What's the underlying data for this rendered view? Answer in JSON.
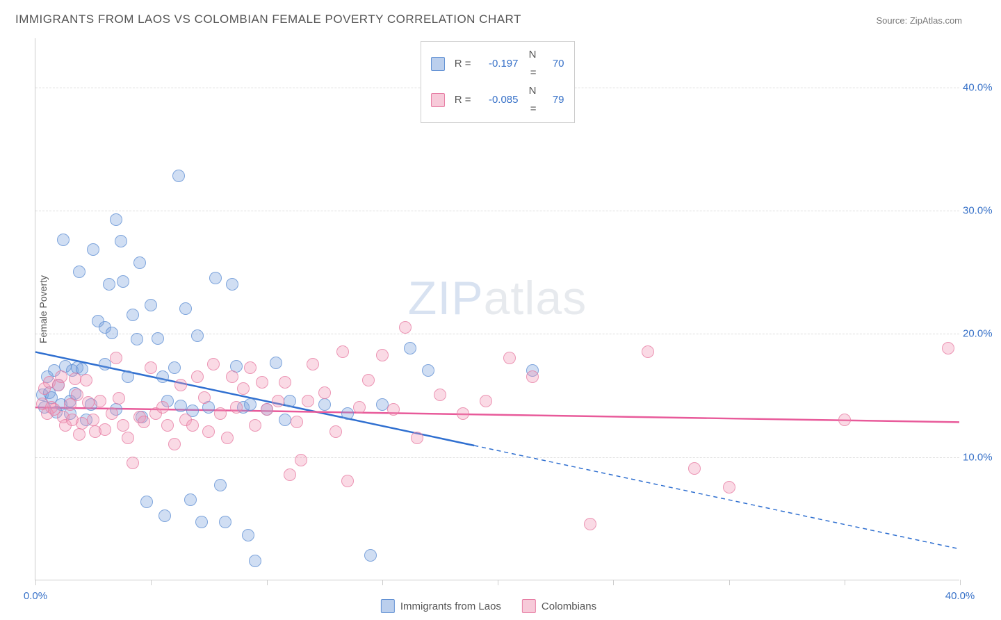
{
  "title": "IMMIGRANTS FROM LAOS VS COLOMBIAN FEMALE POVERTY CORRELATION CHART",
  "source": "Source: ZipAtlas.com",
  "watermark": "ZIPatlas",
  "chart": {
    "type": "scatter",
    "x_axis": {
      "min": 0,
      "max": 40,
      "unit": "%",
      "tick_positions": [
        0,
        5,
        10,
        15,
        20,
        25,
        30,
        35,
        40
      ],
      "labeled_ticks": [
        {
          "pos": 0,
          "label": "0.0%"
        },
        {
          "pos": 40,
          "label": "40.0%"
        }
      ]
    },
    "y_axis": {
      "title": "Female Poverty",
      "min": 0,
      "max": 44,
      "unit": "%",
      "tick_positions": [
        10,
        20,
        30,
        40
      ],
      "labels": [
        "10.0%",
        "20.0%",
        "30.0%",
        "40.0%"
      ]
    },
    "grid_color": "#dddddd",
    "background_color": "#ffffff",
    "axis_color": "#cccccc",
    "tick_label_color": "#3771c8",
    "axis_title_color": "#555555",
    "series": [
      {
        "name": "Immigrants from Laos",
        "color_fill": "rgba(120,160,220,0.35)",
        "color_stroke": "rgba(90,140,210,0.7)",
        "line_color": "#2f6fd0",
        "R": -0.197,
        "N": 70,
        "regression": {
          "x1": 0,
          "y1": 18.5,
          "x2": 40,
          "y2": 2.5,
          "solid_until_x": 19
        },
        "points": [
          [
            0.3,
            15
          ],
          [
            0.4,
            14
          ],
          [
            0.5,
            16.5
          ],
          [
            0.6,
            15.2
          ],
          [
            0.7,
            14.8
          ],
          [
            0.8,
            17
          ],
          [
            0.9,
            13.6
          ],
          [
            1.0,
            15.8
          ],
          [
            1.1,
            14.2
          ],
          [
            1.2,
            27.6
          ],
          [
            1.3,
            17.3
          ],
          [
            1.5,
            13.5
          ],
          [
            1.5,
            14.5
          ],
          [
            1.6,
            17
          ],
          [
            1.7,
            15.1
          ],
          [
            1.8,
            17.2
          ],
          [
            1.9,
            25
          ],
          [
            2.0,
            17.1
          ],
          [
            2.2,
            13.0
          ],
          [
            2.4,
            14.2
          ],
          [
            2.5,
            26.8
          ],
          [
            2.7,
            21
          ],
          [
            3.0,
            20.5
          ],
          [
            3.0,
            17.5
          ],
          [
            3.2,
            24
          ],
          [
            3.3,
            20
          ],
          [
            3.5,
            29.2
          ],
          [
            3.5,
            13.8
          ],
          [
            3.7,
            27.5
          ],
          [
            3.8,
            24.2
          ],
          [
            4.0,
            16.5
          ],
          [
            4.2,
            21.5
          ],
          [
            4.4,
            19.5
          ],
          [
            4.5,
            25.7
          ],
          [
            4.6,
            13.2
          ],
          [
            4.8,
            6.3
          ],
          [
            5.0,
            22.3
          ],
          [
            5.3,
            19.6
          ],
          [
            5.5,
            16.5
          ],
          [
            5.6,
            5.2
          ],
          [
            5.7,
            14.5
          ],
          [
            6.0,
            17.2
          ],
          [
            6.2,
            32.8
          ],
          [
            6.3,
            14.1
          ],
          [
            6.5,
            22.0
          ],
          [
            6.7,
            6.5
          ],
          [
            6.8,
            13.7
          ],
          [
            7.0,
            19.8
          ],
          [
            7.2,
            4.7
          ],
          [
            7.5,
            14.0
          ],
          [
            7.8,
            24.5
          ],
          [
            8.0,
            7.7
          ],
          [
            8.2,
            4.7
          ],
          [
            8.5,
            24.0
          ],
          [
            8.7,
            17.3
          ],
          [
            9.0,
            14.0
          ],
          [
            9.2,
            3.6
          ],
          [
            9.3,
            14.2
          ],
          [
            9.5,
            1.5
          ],
          [
            10.0,
            13.8
          ],
          [
            10.4,
            17.6
          ],
          [
            10.8,
            13.0
          ],
          [
            11.0,
            14.5
          ],
          [
            12.5,
            14.2
          ],
          [
            13.5,
            13.5
          ],
          [
            14.5,
            2.0
          ],
          [
            15.0,
            14.2
          ],
          [
            16.2,
            18.8
          ],
          [
            17.0,
            17.0
          ],
          [
            21.5,
            17.0
          ]
        ]
      },
      {
        "name": "Colombians",
        "color_fill": "rgba(240,150,180,0.35)",
        "color_stroke": "rgba(230,120,160,0.7)",
        "line_color": "#e85a9a",
        "R": -0.085,
        "N": 79,
        "regression": {
          "x1": 0,
          "y1": 14.0,
          "x2": 40,
          "y2": 12.8,
          "solid_until_x": 40
        },
        "points": [
          [
            0.3,
            14.3
          ],
          [
            0.4,
            15.5
          ],
          [
            0.5,
            13.5
          ],
          [
            0.6,
            16.0
          ],
          [
            0.7,
            14.0
          ],
          [
            0.8,
            13.8
          ],
          [
            1.0,
            15.8
          ],
          [
            1.1,
            16.5
          ],
          [
            1.2,
            13.2
          ],
          [
            1.3,
            12.5
          ],
          [
            1.5,
            14.2
          ],
          [
            1.6,
            13.0
          ],
          [
            1.7,
            16.3
          ],
          [
            1.8,
            15.0
          ],
          [
            1.9,
            11.8
          ],
          [
            2.0,
            12.7
          ],
          [
            2.2,
            16.2
          ],
          [
            2.3,
            14.4
          ],
          [
            2.5,
            13.0
          ],
          [
            2.6,
            12.0
          ],
          [
            2.8,
            14.5
          ],
          [
            3.0,
            12.2
          ],
          [
            3.3,
            13.5
          ],
          [
            3.5,
            18.0
          ],
          [
            3.6,
            14.7
          ],
          [
            3.8,
            12.5
          ],
          [
            4.0,
            11.5
          ],
          [
            4.2,
            9.5
          ],
          [
            4.5,
            13.2
          ],
          [
            4.7,
            12.8
          ],
          [
            5.0,
            17.2
          ],
          [
            5.2,
            13.5
          ],
          [
            5.5,
            14.0
          ],
          [
            5.7,
            12.5
          ],
          [
            6.0,
            11.0
          ],
          [
            6.3,
            15.8
          ],
          [
            6.5,
            13.0
          ],
          [
            6.8,
            12.5
          ],
          [
            7.0,
            16.5
          ],
          [
            7.3,
            14.8
          ],
          [
            7.5,
            12.0
          ],
          [
            7.7,
            17.5
          ],
          [
            8.0,
            13.5
          ],
          [
            8.3,
            11.5
          ],
          [
            8.5,
            16.5
          ],
          [
            8.7,
            14.0
          ],
          [
            9.0,
            15.5
          ],
          [
            9.3,
            17.2
          ],
          [
            9.5,
            12.5
          ],
          [
            9.8,
            16.0
          ],
          [
            10.0,
            13.8
          ],
          [
            10.5,
            14.5
          ],
          [
            10.8,
            16.0
          ],
          [
            11.0,
            8.5
          ],
          [
            11.3,
            12.8
          ],
          [
            11.5,
            9.7
          ],
          [
            11.8,
            14.5
          ],
          [
            12.0,
            17.5
          ],
          [
            12.5,
            15.2
          ],
          [
            13.0,
            12.0
          ],
          [
            13.3,
            18.5
          ],
          [
            13.5,
            8.0
          ],
          [
            14.0,
            14.0
          ],
          [
            14.4,
            16.2
          ],
          [
            15.0,
            18.2
          ],
          [
            15.5,
            13.8
          ],
          [
            16.0,
            20.5
          ],
          [
            16.5,
            11.5
          ],
          [
            17.5,
            15.0
          ],
          [
            18.5,
            13.5
          ],
          [
            19.5,
            14.5
          ],
          [
            20.5,
            18.0
          ],
          [
            21.5,
            16.5
          ],
          [
            24.0,
            4.5
          ],
          [
            26.5,
            18.5
          ],
          [
            28.5,
            9.0
          ],
          [
            30.0,
            7.5
          ],
          [
            35.0,
            13.0
          ],
          [
            39.5,
            18.8
          ]
        ]
      }
    ],
    "legend": {
      "stats_box": {
        "border_color": "#cccccc"
      },
      "bottom": [
        {
          "swatch": "blue",
          "label": "Immigrants from Laos"
        },
        {
          "swatch": "pink",
          "label": "Colombians"
        }
      ]
    }
  }
}
